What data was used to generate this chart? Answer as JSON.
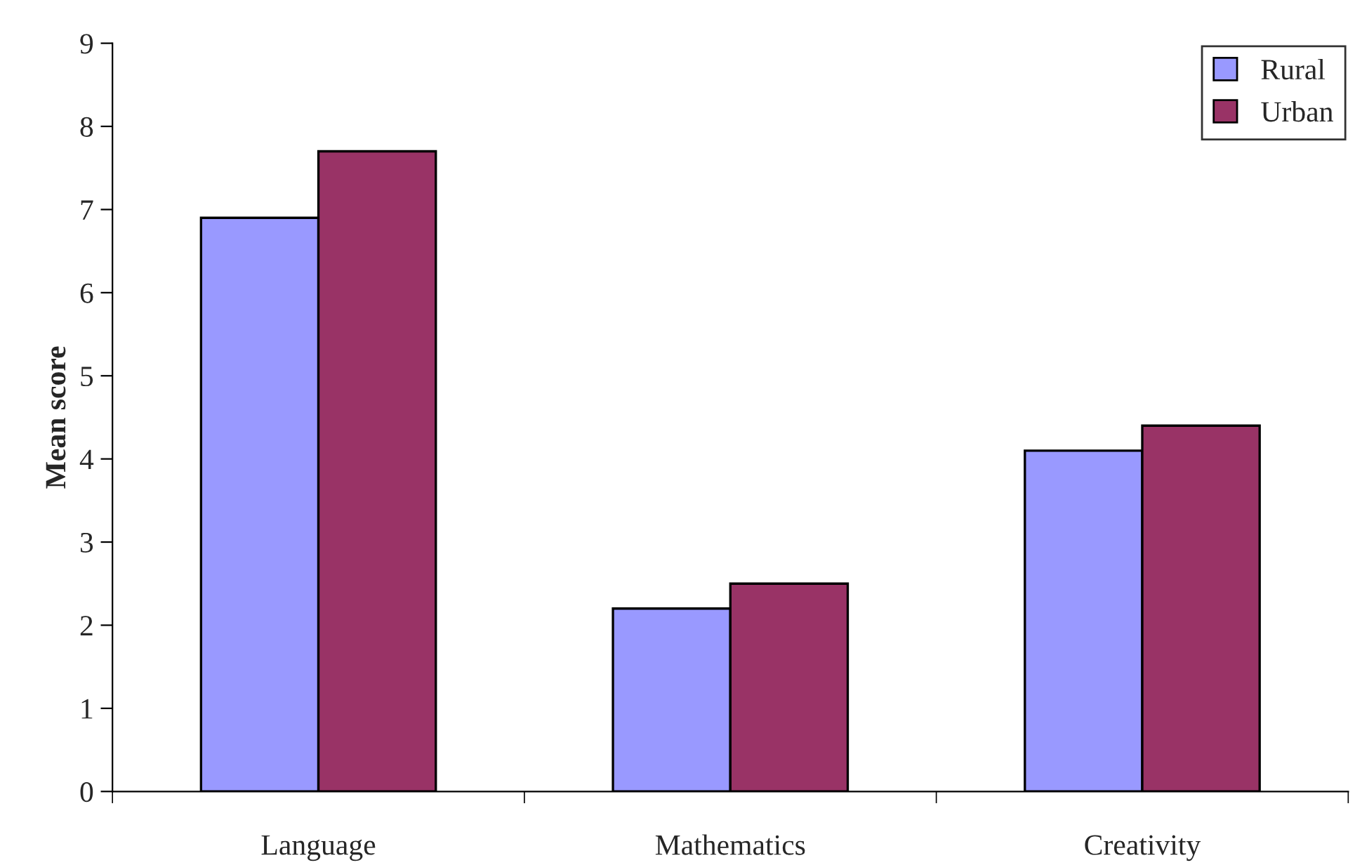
{
  "chart_data": {
    "type": "bar",
    "ylabel": "Mean score",
    "categories": [
      "Language",
      "Mathematics",
      "Creativity"
    ],
    "series": [
      {
        "name": "Rural",
        "color": "#9999ff",
        "values": [
          6.9,
          2.2,
          4.1
        ]
      },
      {
        "name": "Urban",
        "color": "#993366",
        "values": [
          7.7,
          2.5,
          4.4
        ]
      }
    ],
    "ylim": [
      0,
      9
    ],
    "yticks": [
      0,
      1,
      2,
      3,
      4,
      5,
      6,
      7,
      8,
      9
    ],
    "grid": false,
    "legend": "top right"
  }
}
